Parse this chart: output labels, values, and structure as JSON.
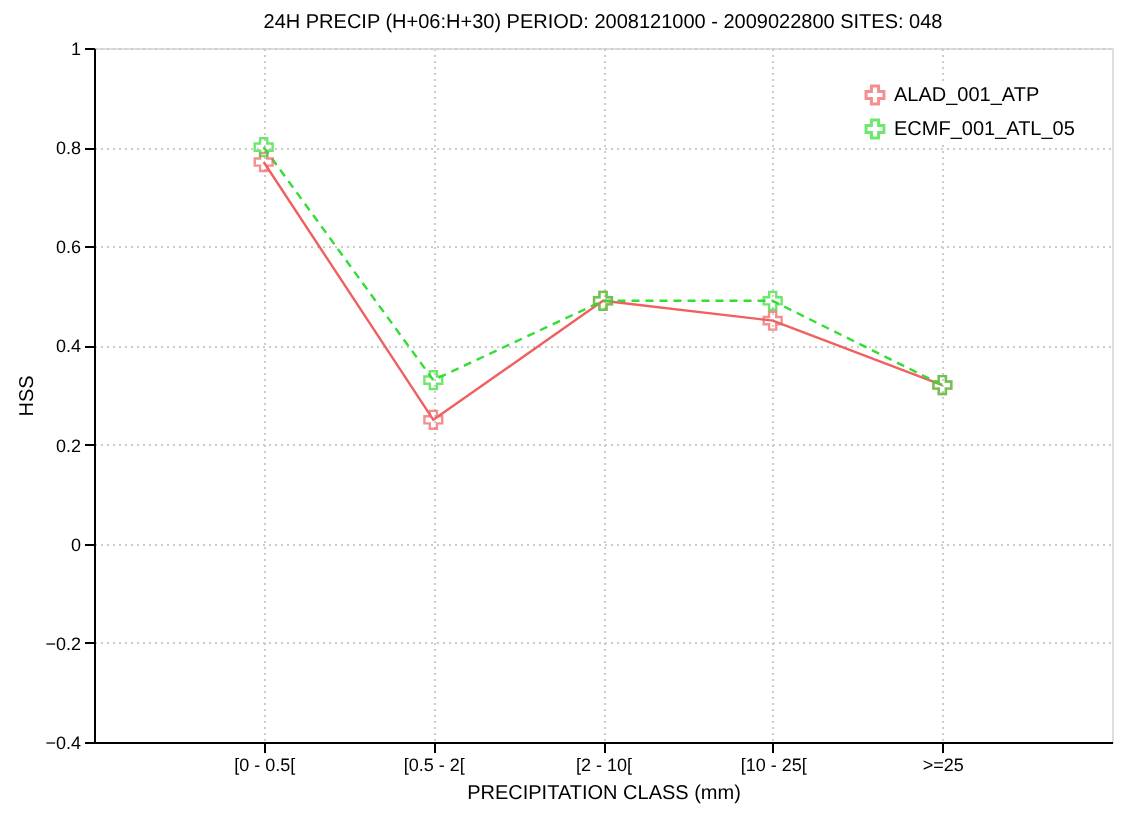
{
  "chart_data": {
    "type": "line",
    "title": "24H PRECIP (H+06:H+30) PERIOD: 2008121000 - 2009022800 SITES: 048",
    "xlabel": "PRECIPITATION CLASS (mm)",
    "ylabel": "HSS",
    "categories": [
      "[0 - 0.5[",
      "[0.5 - 2[",
      "[2 - 10[",
      "[10 - 25[",
      ">=25"
    ],
    "series": [
      {
        "name": "ALAD_001_ATP",
        "color": "#f06060",
        "marker": "cross",
        "line_style": "solid",
        "values": [
          0.77,
          0.25,
          0.49,
          0.45,
          0.32
        ]
      },
      {
        "name": "ECMF_001_ATL_05",
        "color": "#33dd33",
        "marker": "cross",
        "line_style": "dashed",
        "values": [
          0.8,
          0.33,
          0.49,
          0.49,
          0.32
        ]
      }
    ],
    "ylim": [
      -0.4,
      1
    ],
    "yticks": [
      -0.4,
      -0.2,
      0,
      0.2,
      0.4,
      0.6,
      0.8,
      1
    ],
    "grid": true,
    "legend": "top right"
  }
}
